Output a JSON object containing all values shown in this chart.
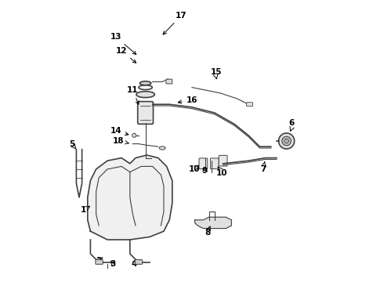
{
  "bg_color": "#ffffff",
  "line_color": "#404040",
  "label_color": "#000000",
  "label_fontsize": 7.5
}
